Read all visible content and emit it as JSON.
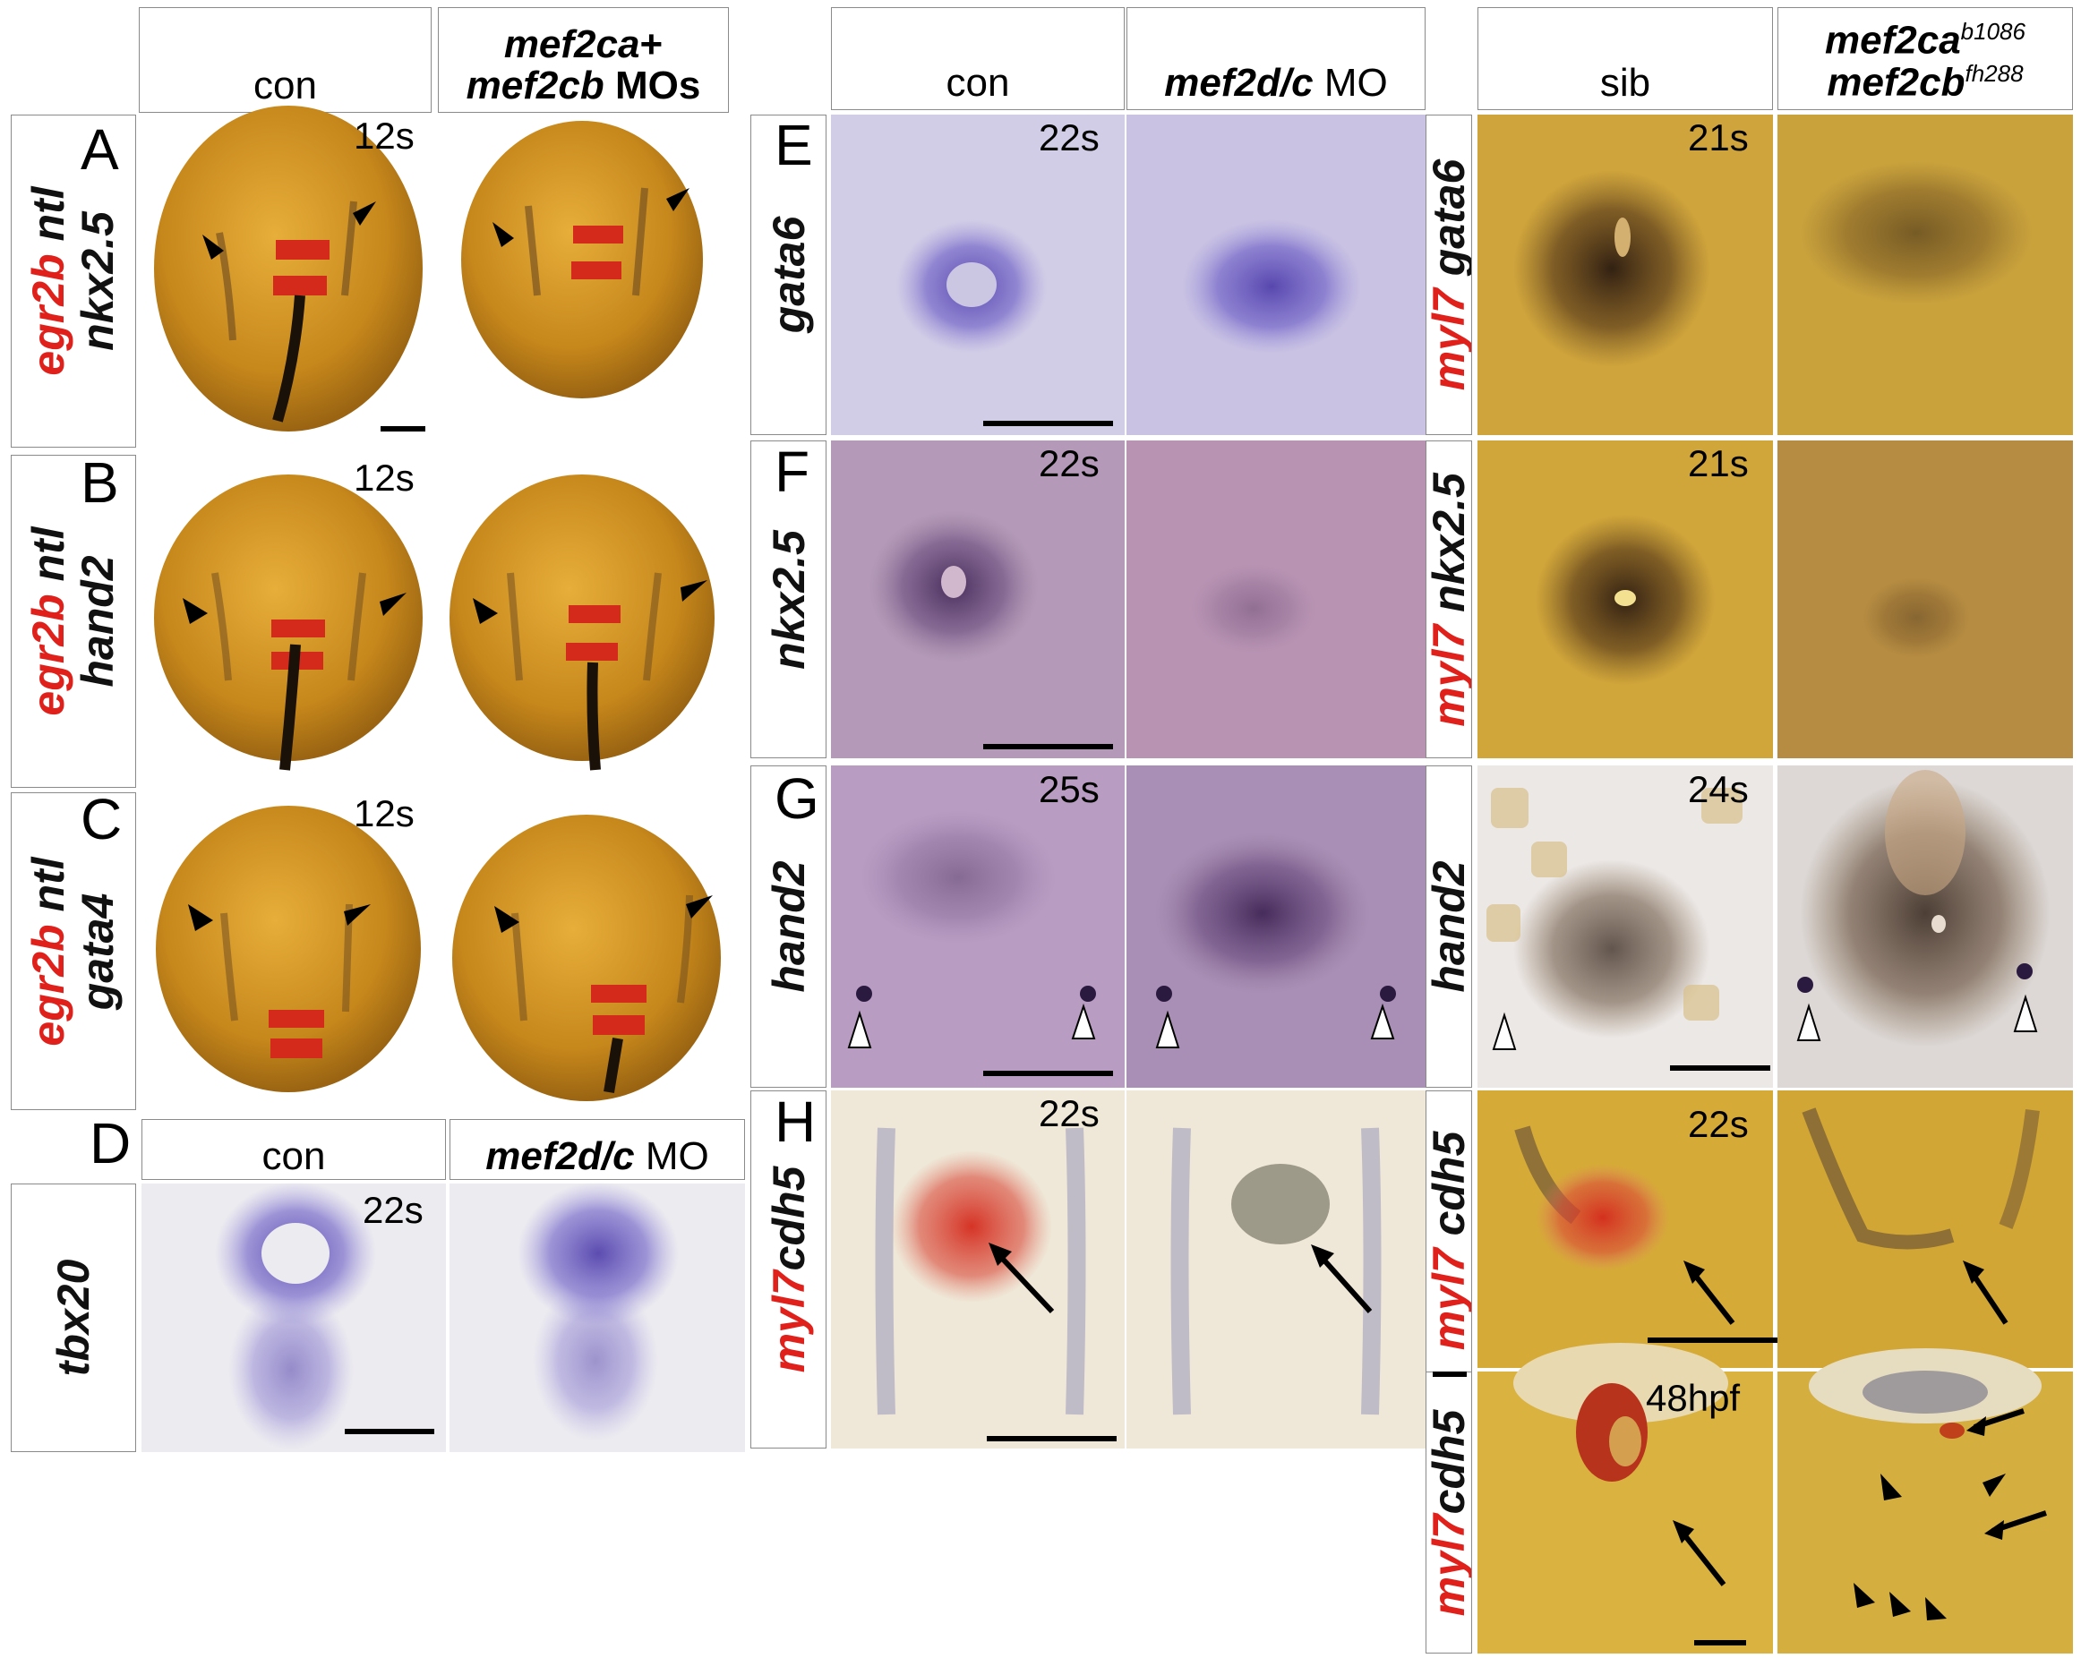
{
  "headers": {
    "col1_con": "con",
    "col1_mo_line1": "mef2ca",
    "col1_mo_plus": "+",
    "col1_mo_line2": "mef2cb",
    "col1_mo_suffix": " MOs",
    "d_con": "con",
    "d_mo": "mef2d/c",
    "d_mo_suffix": " MO",
    "col2_con": "con",
    "col2_mo": "mef2d/c",
    "col2_mo_suffix": " MO",
    "col3_sib": "sib",
    "col3_mut1": "mef2ca",
    "col3_mut1_sup": "b1086",
    "col3_mut2": "mef2cb",
    "col3_mut2_sup": "fh288"
  },
  "panel_letters": [
    "A",
    "B",
    "C",
    "D",
    "E",
    "F",
    "G",
    "H"
  ],
  "row_labels": {
    "A_red": "egr2b",
    "A_black": " ntl",
    "A_second": "nkx2.5",
    "B_red": "egr2b",
    "B_black": " ntl",
    "B_second": "hand2",
    "C_red": "egr2b",
    "C_black": " ntl",
    "C_second": "gata4",
    "D": "tbx20",
    "E": "gata6",
    "F": "nkx2.5",
    "G": "hand2",
    "H_red": "myl7",
    "H_black": "cdh5",
    "r1_red": "myl7",
    "r1_black": " gata6",
    "r2_red": "myl7",
    "r2_black": " nkx2.5",
    "r3": "hand2",
    "r4_red": "myl7",
    "r4_black": " cdh5",
    "r5_red": "myl7",
    "r5_black": "cdh5"
  },
  "stages": {
    "A": "12s",
    "B": "12s",
    "C": "12s",
    "D": "22s",
    "E": "22s",
    "F": "22s",
    "G": "25s",
    "H": "22s",
    "r1": "21s",
    "r2": "21s",
    "r3": "24s",
    "r4": "22s",
    "r5": "48hpf"
  },
  "colors": {
    "yolk_orange": "#c98a1e",
    "purple_stain": "#4b3aa8",
    "red_stain": "#d42a1c",
    "label_red": "#e0201a"
  }
}
